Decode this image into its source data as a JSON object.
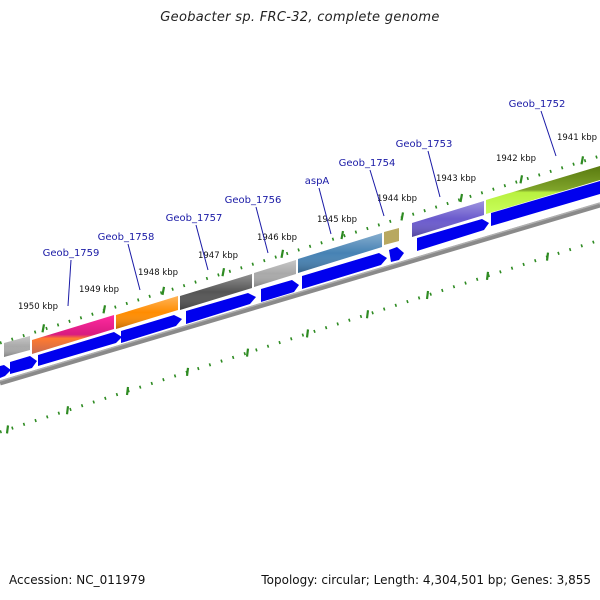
{
  "title": "Geobacter sp. FRC-32, complete genome",
  "footer": {
    "accession": "Accession: NC_011979",
    "topology": "Topology: circular; Length: 4,304,501 bp; Genes: 3,855"
  },
  "tick_labels": [
    "1941 kbp",
    "1942 kbp",
    "1943 kbp",
    "1944 kbp",
    "1945 kbp",
    "1946 kbp",
    "1947 kbp",
    "1948 kbp",
    "1949 kbp",
    "1950 kbp"
  ],
  "genes": [
    {
      "name": "Geob_1752",
      "color": "#7a9a20"
    },
    {
      "name": "Geob_1753",
      "color": "#6a5acd"
    },
    {
      "name": "Geob_1754",
      "color": "#b8a860"
    },
    {
      "name": "aspA",
      "color": "#4682b4"
    },
    {
      "name": "Geob_1756",
      "color": "#a9a9a9"
    },
    {
      "name": "Geob_1757",
      "color": "#555555"
    },
    {
      "name": "Geob_1758",
      "color": "#ff8c00"
    },
    {
      "name": "Geob_1759",
      "color": "#e0208a"
    }
  ],
  "colors": {
    "cds_track": "#0000ee",
    "backbone": "#888888",
    "tick": "#2e8b22",
    "label_line": "#1a1aa6"
  }
}
